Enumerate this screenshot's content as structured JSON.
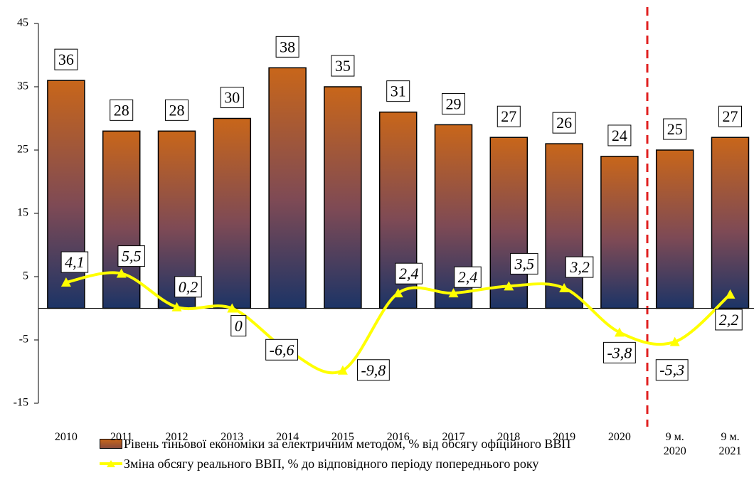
{
  "chart_data": {
    "type": "bar-line",
    "categories": [
      "2010",
      "2011",
      "2012",
      "2013",
      "2014",
      "2015",
      "2016",
      "2017",
      "2018",
      "2019",
      "2020",
      "9 м. 2020",
      "9 м. 2021"
    ],
    "series": [
      {
        "name": "Рівень тіньової економіки за електричним методом, % від обсягу офіційного ВВП",
        "type": "bar",
        "color": "#c8661a",
        "values": [
          36,
          28,
          28,
          30,
          38,
          35,
          31,
          29,
          27,
          26,
          24,
          25,
          27
        ]
      },
      {
        "name": "Зміна обсягу реального ВВП, % до відповідного періоду попереднього року",
        "type": "line",
        "color": "#ffff00",
        "values": [
          4.1,
          5.5,
          0.2,
          0,
          -6.6,
          -9.8,
          2.4,
          2.4,
          3.5,
          3.2,
          -3.8,
          -5.3,
          2.2
        ],
        "value_labels": [
          "4,1",
          "5,5",
          "0,2",
          "0",
          "-6,6",
          "-9,8",
          "2,4",
          "2,4",
          "3,5",
          "3,2",
          "-3,8",
          "-5,3",
          "2,2"
        ]
      }
    ],
    "ylim": [
      -15,
      45
    ],
    "yticks": [
      -15,
      -5,
      5,
      15,
      25,
      35,
      45
    ]
  }
}
